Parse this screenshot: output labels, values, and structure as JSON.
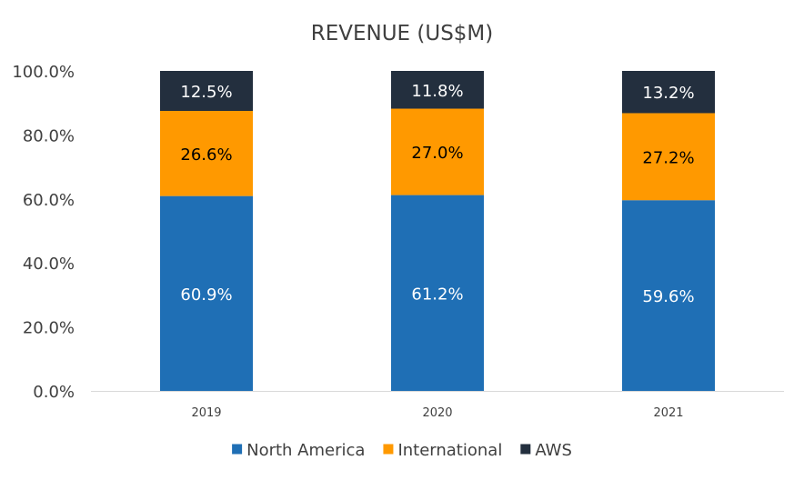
{
  "chart_data": {
    "type": "bar",
    "stacked": true,
    "title": "REVENUE (US$M)",
    "xlabel": "",
    "ylabel": "",
    "categories": [
      "2019",
      "2020",
      "2021"
    ],
    "y_ticks": [
      "0.0%",
      "20.0%",
      "40.0%",
      "60.0%",
      "80.0%",
      "100.0%"
    ],
    "ylim": [
      0,
      100
    ],
    "grid": false,
    "legend_position": "bottom",
    "series": [
      {
        "name": "North America",
        "color": "#1f6fb5",
        "values": [
          60.9,
          61.2,
          59.6
        ],
        "labels": [
          "60.9%",
          "61.2%",
          "59.6%"
        ],
        "label_color": "white"
      },
      {
        "name": "International",
        "color": "#ff9900",
        "values": [
          26.6,
          27.0,
          27.2
        ],
        "labels": [
          "26.6%",
          "27.0%",
          "27.2%"
        ],
        "label_color": "black"
      },
      {
        "name": "AWS",
        "color": "#232f3e",
        "values": [
          12.5,
          11.8,
          13.2
        ],
        "labels": [
          "12.5%",
          "11.8%",
          "13.2%"
        ],
        "label_color": "white"
      }
    ]
  }
}
